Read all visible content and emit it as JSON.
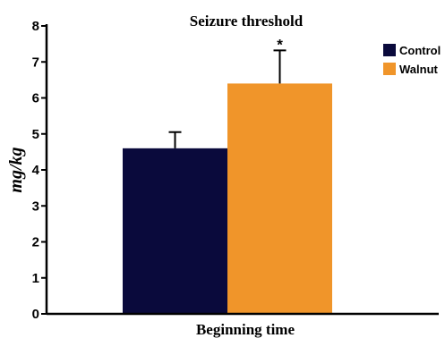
{
  "chart_data": {
    "type": "bar",
    "title": "Seizure threshold",
    "xlabel": "Beginning time",
    "ylabel": "mg/kg",
    "ylim": [
      0,
      8
    ],
    "yticks": [
      "0",
      "1",
      "2",
      "3",
      "4",
      "5",
      "6",
      "7",
      "8"
    ],
    "grid": false,
    "legend_position": "top-right",
    "series": [
      {
        "name": "Control",
        "value": 4.6,
        "error": 0.45,
        "color": "#0a0a3c",
        "annotation": ""
      },
      {
        "name": "Walnut",
        "value": 6.4,
        "error": 0.92,
        "color": "#f0952a",
        "annotation": "*"
      }
    ]
  }
}
